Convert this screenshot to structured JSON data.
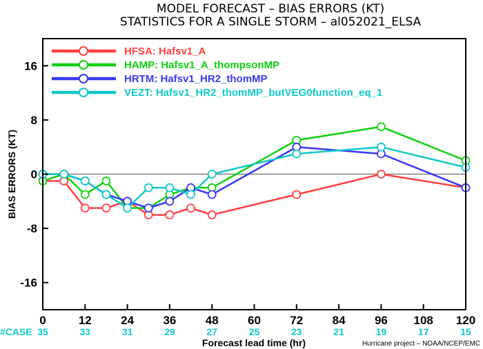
{
  "chart_data": {
    "type": "line",
    "title": "MODEL FORECAST – BIAS ERRORS (KT)",
    "subtitle": "STATISTICS FOR A SINGLE STORM – al052021_ELSA",
    "xlabel": "Forecast lead time (hr)",
    "ylabel": "BIAS ERRORS (KT)",
    "xlim": [
      0,
      120
    ],
    "ylim": [
      -20,
      20
    ],
    "xticks": [
      0,
      12,
      24,
      36,
      48,
      60,
      72,
      84,
      96,
      108,
      120
    ],
    "yticks": [
      -16,
      -8,
      0,
      8,
      16
    ],
    "ytick_labels": [
      "-16",
      "-8",
      "0",
      "8",
      "16"
    ],
    "zero_line": true,
    "grid": false,
    "legend_position": "top-left",
    "case_label": "#CASE",
    "case_x": [
      0,
      12,
      24,
      36,
      48,
      60,
      72,
      84,
      96,
      108,
      120
    ],
    "case_counts": [
      "35",
      "33",
      "31",
      "29",
      "27",
      "25",
      "23",
      "21",
      "19",
      "17",
      "15"
    ],
    "series": [
      {
        "code": "HFSA:",
        "name": "Hafsv1_A",
        "color": "#ff4040",
        "x": [
          0,
          6,
          12,
          18,
          24,
          30,
          36,
          42,
          48,
          72,
          96,
          120
        ],
        "y": [
          -1,
          -1,
          -5,
          -5,
          -4,
          -6,
          -6,
          -5,
          -6,
          -3,
          0,
          -2
        ]
      },
      {
        "code": "HAMP:",
        "name": "Hafsv1_A_thompsonMP",
        "color": "#10d010",
        "x": [
          0,
          6,
          12,
          18,
          24,
          30,
          36,
          42,
          48,
          72,
          96,
          120
        ],
        "y": [
          -1,
          0,
          -3,
          -1,
          -5,
          -5,
          -3,
          -2,
          -2,
          5,
          7,
          2
        ]
      },
      {
        "code": "HRTM:",
        "name": "Hafsv1_HR2_thomMP",
        "color": "#3838f0",
        "x": [
          0,
          6,
          12,
          18,
          24,
          30,
          36,
          42,
          48,
          72,
          96,
          120
        ],
        "y": [
          0,
          0,
          -1,
          -3,
          -4,
          -5,
          -4,
          -2,
          -3,
          4,
          3,
          -2
        ]
      },
      {
        "code": "VEZT:",
        "name": "Hafsv1_HR2_thomMP_butVEG0function_eq_1",
        "color": "#10c8c8",
        "x": [
          0,
          6,
          12,
          18,
          24,
          30,
          36,
          42,
          48,
          72,
          96,
          120
        ],
        "y": [
          0,
          0,
          -1,
          -3,
          -5,
          -2,
          -2,
          -3,
          0,
          3,
          4,
          1
        ]
      }
    ]
  },
  "colors": {
    "case_color": "#10c8c8",
    "zero_line": "#808080",
    "axes": "#000000"
  },
  "credit": "Hurricane project – NOAA/NCEP/EMC"
}
